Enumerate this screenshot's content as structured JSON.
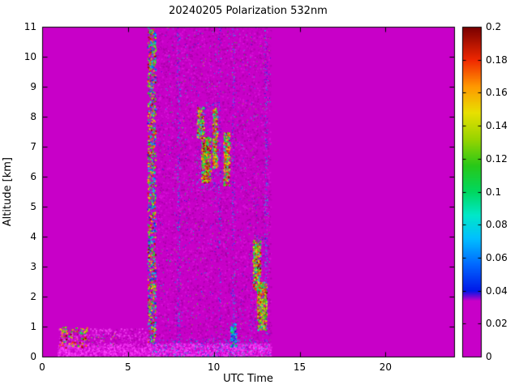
{
  "chart_data": {
    "type": "heatmap",
    "title": "20240205 Polarization 532nm",
    "xlabel": "UTC Time",
    "ylabel": "Altitude [km]",
    "xlim": [
      0,
      24
    ],
    "ylim": [
      0,
      11
    ],
    "xticks": [
      0,
      5,
      10,
      15,
      20
    ],
    "xtick_labels": [
      "0",
      "5",
      "10",
      "15",
      "20"
    ],
    "yticks": [
      0,
      1,
      2,
      3,
      4,
      5,
      6,
      7,
      8,
      9,
      10,
      11
    ],
    "ytick_labels": [
      "0",
      "1",
      "2",
      "3",
      "4",
      "5",
      "6",
      "7",
      "8",
      "9",
      "10",
      "11"
    ],
    "grid": false,
    "legend": "none",
    "background_value": 0,
    "colorbar": {
      "min": 0,
      "max": 0.2,
      "position": "right",
      "ticks": [
        0,
        0.02,
        0.04,
        0.06,
        0.08,
        0.1,
        0.12,
        0.14,
        0.16,
        0.18,
        0.2
      ],
      "tick_labels": [
        "0",
        "0.02",
        "0.04",
        "0.06",
        "0.08",
        "0.1",
        "0.12",
        "0.14",
        "0.16",
        "0.18",
        "0.2"
      ]
    },
    "colormap_stops": [
      {
        "v": 0.0,
        "color": "#C800C8"
      },
      {
        "v": 0.034,
        "color": "#C800C8"
      },
      {
        "v": 0.04,
        "color": "#0018E8"
      },
      {
        "v": 0.056,
        "color": "#0068FF"
      },
      {
        "v": 0.072,
        "color": "#00C0FF"
      },
      {
        "v": 0.086,
        "color": "#00E8C8"
      },
      {
        "v": 0.1,
        "color": "#00D860"
      },
      {
        "v": 0.116,
        "color": "#28C818"
      },
      {
        "v": 0.132,
        "color": "#98D400"
      },
      {
        "v": 0.148,
        "color": "#E8E000"
      },
      {
        "v": 0.164,
        "color": "#FF9800"
      },
      {
        "v": 0.18,
        "color": "#F02800"
      },
      {
        "v": 0.2,
        "color": "#780000"
      }
    ],
    "features": [
      {
        "name": "noise-region-mottle",
        "t": [
          6.6,
          13.3
        ],
        "alt": [
          0,
          11
        ],
        "coverage": 0.25,
        "dot": [
          1,
          2
        ],
        "colors": [
          "#BB00BB",
          "#AA00AA",
          "#D810D8",
          "#C800C8"
        ]
      },
      {
        "name": "noise-region-color-dots",
        "t": [
          6.6,
          13.3
        ],
        "alt": [
          0,
          11
        ],
        "coverage": 0.018,
        "dot": [
          1,
          1
        ],
        "values": [
          0.03,
          0.13
        ]
      },
      {
        "name": "noise-column-1",
        "t": [
          7.85,
          8.02
        ],
        "alt": [
          0,
          11
        ],
        "coverage": 0.3,
        "dot": [
          1,
          1
        ],
        "values": [
          0.0,
          0.09
        ]
      },
      {
        "name": "noise-column-2",
        "t": [
          10.25,
          10.4
        ],
        "alt": [
          0,
          11
        ],
        "coverage": 0.25,
        "dot": [
          1,
          1
        ],
        "values": [
          0.0,
          0.08
        ]
      },
      {
        "name": "noise-column-3",
        "t": [
          11.05,
          11.2
        ],
        "alt": [
          0,
          11
        ],
        "coverage": 0.25,
        "dot": [
          1,
          1
        ],
        "values": [
          0.0,
          0.08
        ]
      },
      {
        "name": "noise-column-4",
        "t": [
          12.95,
          13.12
        ],
        "alt": [
          0,
          11
        ],
        "coverage": 0.3,
        "dot": [
          1,
          1
        ],
        "values": [
          0.0,
          0.09
        ]
      },
      {
        "name": "calibration-stripe",
        "t": [
          6.12,
          6.58
        ],
        "alt": [
          0,
          11
        ],
        "coverage": 0.6,
        "dot": [
          1,
          2
        ],
        "values": [
          0.0,
          0.2
        ]
      },
      {
        "name": "surface-bright-band",
        "t": [
          0.9,
          13.3
        ],
        "alt": [
          0,
          0.45
        ],
        "coverage": 1.5,
        "dot": [
          1,
          2
        ],
        "colors": [
          "#F030F0",
          "#FF48FF",
          "#D810D8",
          "#C800C8"
        ]
      },
      {
        "name": "surface-cyan-speckle",
        "t": [
          6.4,
          13.3
        ],
        "alt": [
          0,
          0.6
        ],
        "coverage": 0.12,
        "dot": [
          1,
          1
        ],
        "values": [
          0.03,
          0.1
        ]
      },
      {
        "name": "pbl-speckle-left",
        "t": [
          0.9,
          6.2
        ],
        "alt": [
          0.35,
          0.95
        ],
        "coverage": 0.3,
        "dot": [
          1,
          2
        ],
        "colors": [
          "#E020E0",
          "#F040F0",
          "#B000B0",
          "#C800C8"
        ]
      },
      {
        "name": "ground-clutter-dark",
        "t": [
          1.0,
          2.6
        ],
        "alt": [
          0.3,
          1.0
        ],
        "coverage": 0.18,
        "dot": [
          1,
          2
        ],
        "values": [
          0.09,
          0.2
        ]
      },
      {
        "name": "ground-clutter-sparse",
        "t": [
          2.6,
          4.3
        ],
        "alt": [
          0.35,
          0.8
        ],
        "coverage": 0.05,
        "dot": [
          1,
          1
        ],
        "values": [
          0.08,
          0.18
        ]
      },
      {
        "name": "cloud-fringe-mid",
        "t": [
          8.95,
          10.3
        ],
        "alt": [
          5.55,
          8.5
        ],
        "coverage": 0.08,
        "dot": [
          1,
          1
        ],
        "values": [
          0.03,
          0.09
        ]
      },
      {
        "name": "cloud-blob-main",
        "t": [
          9.25,
          9.8
        ],
        "alt": [
          5.8,
          7.35
        ],
        "coverage": 0.95,
        "dot": [
          1,
          2
        ],
        "values": [
          0.09,
          0.2
        ]
      },
      {
        "name": "cloud-blob-upper",
        "t": [
          9.0,
          9.4
        ],
        "alt": [
          7.3,
          8.35
        ],
        "coverage": 0.7,
        "dot": [
          1,
          2
        ],
        "values": [
          0.07,
          0.2
        ]
      },
      {
        "name": "cloud-blob-right",
        "t": [
          9.9,
          10.18
        ],
        "alt": [
          6.3,
          8.3
        ],
        "coverage": 0.8,
        "dot": [
          1,
          2
        ],
        "values": [
          0.08,
          0.2
        ]
      },
      {
        "name": "cloud-streak-second",
        "t": [
          10.55,
          10.9
        ],
        "alt": [
          5.7,
          7.5
        ],
        "coverage": 0.8,
        "dot": [
          1,
          2
        ],
        "values": [
          0.08,
          0.2
        ]
      },
      {
        "name": "low-cloud-fringe",
        "t": [
          12.1,
          13.15
        ],
        "alt": [
          0.8,
          4.1
        ],
        "coverage": 0.08,
        "dot": [
          1,
          1
        ],
        "values": [
          0.03,
          0.09
        ]
      },
      {
        "name": "low-cloud-upper",
        "t": [
          12.25,
          12.7
        ],
        "alt": [
          2.2,
          3.9
        ],
        "coverage": 0.85,
        "dot": [
          1,
          2
        ],
        "values": [
          0.08,
          0.2
        ]
      },
      {
        "name": "low-cloud-lower",
        "t": [
          12.5,
          13.05
        ],
        "alt": [
          0.9,
          2.5
        ],
        "coverage": 0.85,
        "dot": [
          1,
          2
        ],
        "values": [
          0.08,
          0.2
        ]
      },
      {
        "name": "low-level-spot",
        "t": [
          10.95,
          11.3
        ],
        "alt": [
          0.35,
          1.15
        ],
        "coverage": 0.7,
        "dot": [
          1,
          2
        ],
        "values": [
          0.04,
          0.12
        ]
      }
    ]
  }
}
